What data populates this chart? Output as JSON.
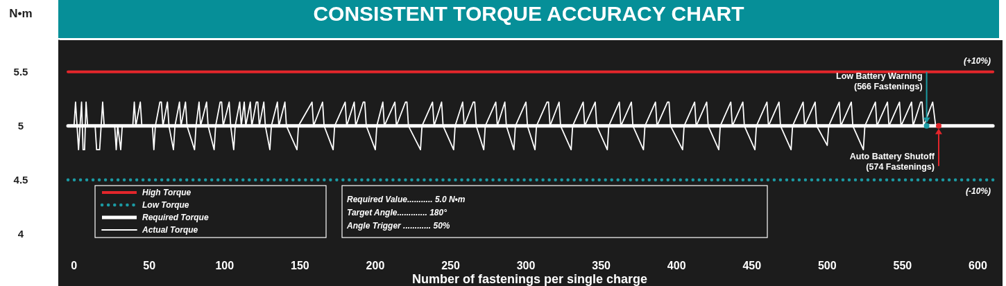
{
  "chart_data": {
    "type": "line",
    "title": "CONSISTENT TORQUE ACCURACY CHART",
    "xlabel": "Number of fastenings per single charge",
    "ylabel": "N•m",
    "xlim": [
      -10,
      615
    ],
    "ylim": [
      3.8,
      5.8
    ],
    "xticks": [
      0,
      50,
      100,
      150,
      200,
      250,
      300,
      350,
      400,
      450,
      500,
      550,
      600
    ],
    "yticks": [
      4.0,
      4.5,
      5.0,
      5.5
    ],
    "legend": "bottom left",
    "marker": "none",
    "series": [
      {
        "name": "High Torque",
        "color": "#e3262b",
        "line_style": "solid",
        "x": [
          -4,
          610
        ],
        "values": [
          5.5,
          5.5
        ]
      },
      {
        "name": "Low Torque",
        "color": "#1b9aa3",
        "line_style": "dotted",
        "x": [
          -4,
          610
        ],
        "values": [
          4.5,
          4.5
        ]
      },
      {
        "name": "Required Torque",
        "color": "#ffffff",
        "line_style": "solid",
        "x": [
          -4,
          610
        ],
        "values": [
          5.0,
          5.0
        ]
      },
      {
        "name": "Actual Torque",
        "color": "#ffffff",
        "line_style": "solid",
        "x": [
          0,
          1,
          2,
          3,
          4,
          5,
          6,
          7,
          8,
          9,
          14,
          15,
          17,
          18,
          19,
          20,
          27,
          28,
          29,
          31,
          32,
          39,
          40,
          41,
          44,
          45,
          52,
          53,
          54,
          57,
          58,
          59,
          62,
          63,
          66,
          67,
          70,
          71,
          74,
          75,
          80,
          81,
          83,
          84,
          88,
          89,
          93,
          94,
          97,
          98,
          99,
          103,
          104,
          106,
          107,
          110,
          111,
          113,
          114,
          117,
          118,
          121,
          122,
          123,
          126,
          127,
          130,
          131,
          135,
          136,
          140,
          141,
          148,
          149,
          158,
          159,
          165,
          166,
          172,
          173,
          180,
          181,
          186,
          187,
          192,
          193,
          194,
          200,
          201,
          205,
          206,
          213,
          214,
          220,
          221,
          222,
          230,
          231,
          238,
          239,
          244,
          245,
          252,
          253,
          258,
          259,
          265,
          266,
          267,
          272,
          273,
          280,
          281,
          286,
          287,
          292,
          293,
          300,
          301,
          306,
          307,
          314,
          315,
          316,
          322,
          323,
          330,
          331,
          338,
          339,
          346,
          347,
          354,
          355,
          362,
          363,
          370,
          371,
          378,
          379,
          386,
          387,
          394,
          395,
          396,
          404,
          405,
          412,
          413,
          420,
          421,
          428,
          429,
          436,
          437,
          444,
          445,
          452,
          453,
          460,
          461,
          468,
          469,
          476,
          477,
          484,
          485,
          492,
          493,
          500,
          501,
          508,
          509,
          516,
          517,
          524,
          525,
          532,
          533,
          540,
          541,
          548,
          549,
          556,
          557,
          562,
          563,
          564,
          570,
          572,
          574
        ],
        "values": [
          5.0,
          5.22,
          5.0,
          4.78,
          5.0,
          5.22,
          4.78,
          4.78,
          5.22,
          5.0,
          5.0,
          4.78,
          4.78,
          5.0,
          5.22,
          5.0,
          5.0,
          4.78,
          5.0,
          4.78,
          5.0,
          5.0,
          5.22,
          5.0,
          5.22,
          5.0,
          5.0,
          4.78,
          5.0,
          5.22,
          5.22,
          5.0,
          5.22,
          5.0,
          4.78,
          5.0,
          5.22,
          5.0,
          5.22,
          5.0,
          4.78,
          5.0,
          5.22,
          5.0,
          5.22,
          5.0,
          4.78,
          5.0,
          5.22,
          5.22,
          5.0,
          5.22,
          5.0,
          4.78,
          5.0,
          5.22,
          5.0,
          5.22,
          5.0,
          5.22,
          5.0,
          5.22,
          5.22,
          5.0,
          5.22,
          5.0,
          4.78,
          5.0,
          5.22,
          5.0,
          5.22,
          5.0,
          4.78,
          5.0,
          5.22,
          5.0,
          5.22,
          5.0,
          4.78,
          5.0,
          5.22,
          5.0,
          5.22,
          5.0,
          5.22,
          5.22,
          5.0,
          4.78,
          5.0,
          5.22,
          5.0,
          5.22,
          5.0,
          5.22,
          5.22,
          5.0,
          4.78,
          5.0,
          5.22,
          5.0,
          5.22,
          5.0,
          4.78,
          5.0,
          5.22,
          5.0,
          5.22,
          5.22,
          5.0,
          4.78,
          5.0,
          5.22,
          5.0,
          5.22,
          5.0,
          4.78,
          5.0,
          5.22,
          5.0,
          4.78,
          5.0,
          5.22,
          5.22,
          5.0,
          5.22,
          5.0,
          4.78,
          5.0,
          5.22,
          5.0,
          5.22,
          5.0,
          4.78,
          5.0,
          5.22,
          5.0,
          5.22,
          5.0,
          4.78,
          5.0,
          5.22,
          5.0,
          5.22,
          5.22,
          5.0,
          4.78,
          5.0,
          5.22,
          5.0,
          5.22,
          5.0,
          4.78,
          5.0,
          5.22,
          5.0,
          5.22,
          5.0,
          4.78,
          5.0,
          5.22,
          5.0,
          5.22,
          5.0,
          4.78,
          5.0,
          5.22,
          5.0,
          5.22,
          5.0,
          4.82,
          5.0,
          5.22,
          5.0,
          5.22,
          5.0,
          4.78,
          5.0,
          5.22,
          5.0,
          5.22,
          5.0,
          5.22,
          5.0,
          5.22,
          5.0,
          5.22,
          5.22,
          5.0,
          5.22,
          5.0,
          5.0
        ]
      }
    ],
    "annotations": [
      {
        "text": "(+10%)",
        "x": 600,
        "y": 5.5
      },
      {
        "text": "(-10%)",
        "x": 600,
        "y": 4.5
      },
      {
        "text": "Low Battery Warning\n(566 Fastenings)",
        "x": 566,
        "y": 5.0
      },
      {
        "text": "Auto Battery Shutoff\n(574 Fastenings)",
        "x": 574,
        "y": 5.0
      },
      "Required Value........... 5.0 N•m",
      "Target Angle............. 180°",
      "Angle Trigger ............ 50%"
    ]
  }
}
